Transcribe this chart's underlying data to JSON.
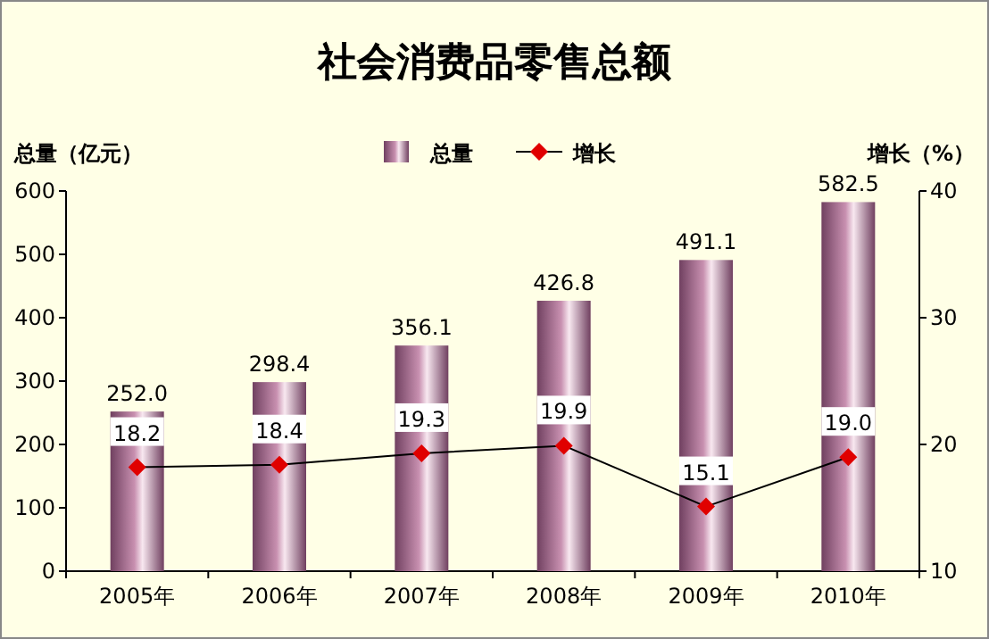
{
  "chart_data": {
    "type": "bar",
    "title": "社会消费品零售总额",
    "ylabel": "总量（亿元）",
    "y2label": "增长（%）",
    "categories": [
      "2005年",
      "2006年",
      "2007年",
      "2008年",
      "2009年",
      "2010年"
    ],
    "series": [
      {
        "name": "总量",
        "color": "#c890b0",
        "values": [
          252.0,
          298.4,
          356.1,
          426.8,
          491.1,
          582.5
        ],
        "value_labels": [
          "252.0",
          "298.4",
          "356.1",
          "426.8",
          "491.1",
          "582.5"
        ]
      },
      {
        "name": "增长",
        "type": "line",
        "axis": "y2",
        "color": "#e00000",
        "marker": "diamond",
        "values": [
          18.2,
          18.4,
          19.3,
          19.9,
          15.1,
          19.0
        ],
        "value_labels": [
          "18.2",
          "18.4",
          "19.3",
          "19.9",
          "15.1",
          "19.0"
        ]
      }
    ],
    "ylim": [
      0,
      600
    ],
    "yticks": [
      0,
      100,
      200,
      300,
      400,
      500,
      600
    ],
    "y2lim": [
      10,
      40
    ],
    "y2ticks": [
      10,
      20,
      30,
      40
    ],
    "legend": "top",
    "grid": false
  }
}
